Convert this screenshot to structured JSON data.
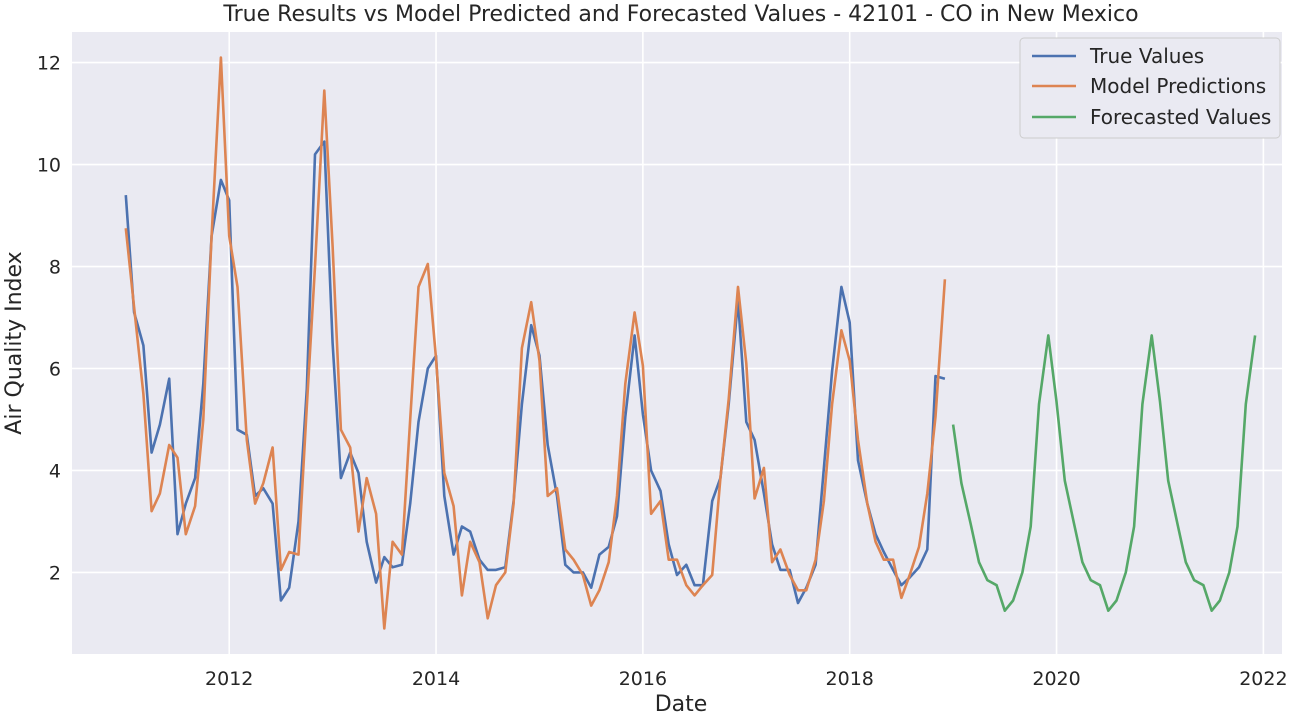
{
  "chart_data": {
    "type": "line",
    "title": "True Results vs Model Predicted and Forecasted Values - 42101 - CO in New Mexico",
    "xlabel": "Date",
    "ylabel": "Air Quality Index",
    "xlim": [
      2010.48,
      2022.18
    ],
    "ylim": [
      0.4,
      12.6
    ],
    "x_ticks": [
      2012,
      2014,
      2016,
      2018,
      2020,
      2022
    ],
    "y_ticks": [
      2,
      4,
      6,
      8,
      10,
      12
    ],
    "grid": true,
    "legend_position": "top-right",
    "series": [
      {
        "name": "True Values",
        "color": "#4c72b0",
        "x": [
          2011.0,
          2011.08,
          2011.17,
          2011.25,
          2011.33,
          2011.42,
          2011.5,
          2011.58,
          2011.67,
          2011.75,
          2011.83,
          2011.92,
          2012.0,
          2012.08,
          2012.17,
          2012.25,
          2012.33,
          2012.42,
          2012.5,
          2012.58,
          2012.67,
          2012.75,
          2012.83,
          2012.92,
          2013.0,
          2013.08,
          2013.17,
          2013.25,
          2013.33,
          2013.42,
          2013.5,
          2013.58,
          2013.67,
          2013.75,
          2013.83,
          2013.92,
          2014.0,
          2014.08,
          2014.17,
          2014.25,
          2014.33,
          2014.42,
          2014.5,
          2014.58,
          2014.67,
          2014.75,
          2014.83,
          2014.92,
          2015.0,
          2015.08,
          2015.17,
          2015.25,
          2015.33,
          2015.42,
          2015.5,
          2015.58,
          2015.67,
          2015.75,
          2015.83,
          2015.92,
          2016.0,
          2016.08,
          2016.17,
          2016.25,
          2016.33,
          2016.42,
          2016.5,
          2016.58,
          2016.67,
          2016.75,
          2016.83,
          2016.92,
          2017.0,
          2017.08,
          2017.17,
          2017.25,
          2017.33,
          2017.42,
          2017.5,
          2017.58,
          2017.67,
          2017.75,
          2017.83,
          2017.92,
          2018.0,
          2018.08,
          2018.17,
          2018.25,
          2018.33,
          2018.42,
          2018.5,
          2018.58,
          2018.67,
          2018.75,
          2018.83,
          2018.92
        ],
        "values": [
          9.4,
          7.1,
          6.45,
          4.35,
          4.9,
          5.8,
          2.75,
          3.35,
          3.85,
          5.7,
          8.6,
          9.7,
          9.3,
          4.8,
          4.7,
          3.5,
          3.65,
          3.35,
          1.45,
          1.7,
          3.0,
          5.6,
          10.2,
          10.45,
          6.5,
          3.85,
          4.35,
          3.95,
          2.6,
          1.8,
          2.3,
          2.1,
          2.15,
          3.35,
          4.95,
          6.0,
          6.25,
          3.5,
          2.35,
          2.9,
          2.8,
          2.25,
          2.05,
          2.05,
          2.1,
          3.4,
          5.3,
          6.85,
          6.25,
          4.5,
          3.5,
          2.15,
          2.0,
          2.0,
          1.7,
          2.35,
          2.5,
          3.1,
          5.05,
          6.65,
          5.1,
          4.0,
          3.6,
          2.55,
          1.95,
          2.15,
          1.75,
          1.75,
          3.4,
          3.85,
          5.3,
          7.35,
          4.95,
          4.6,
          3.55,
          2.55,
          2.05,
          2.05,
          1.4,
          1.7,
          2.15,
          4.05,
          5.95,
          7.6,
          6.9,
          4.2,
          3.35,
          2.75,
          2.4,
          2.05,
          1.75,
          1.9,
          2.1,
          2.45,
          5.85,
          5.8
        ]
      },
      {
        "name": "Model Predictions",
        "color": "#dd8452",
        "x": [
          2011.0,
          2011.08,
          2011.17,
          2011.25,
          2011.33,
          2011.42,
          2011.5,
          2011.58,
          2011.67,
          2011.75,
          2011.83,
          2011.92,
          2012.0,
          2012.08,
          2012.17,
          2012.25,
          2012.33,
          2012.42,
          2012.5,
          2012.58,
          2012.67,
          2012.75,
          2012.83,
          2012.92,
          2013.0,
          2013.08,
          2013.17,
          2013.25,
          2013.33,
          2013.42,
          2013.5,
          2013.58,
          2013.67,
          2013.75,
          2013.83,
          2013.92,
          2014.0,
          2014.08,
          2014.17,
          2014.25,
          2014.33,
          2014.42,
          2014.5,
          2014.58,
          2014.67,
          2014.75,
          2014.83,
          2014.92,
          2015.0,
          2015.08,
          2015.17,
          2015.25,
          2015.33,
          2015.42,
          2015.5,
          2015.58,
          2015.67,
          2015.75,
          2015.83,
          2015.92,
          2016.0,
          2016.08,
          2016.17,
          2016.25,
          2016.33,
          2016.42,
          2016.5,
          2016.58,
          2016.67,
          2016.75,
          2016.83,
          2016.92,
          2017.0,
          2017.08,
          2017.17,
          2017.25,
          2017.33,
          2017.42,
          2017.5,
          2017.58,
          2017.67,
          2017.75,
          2017.83,
          2017.92,
          2018.0,
          2018.08,
          2018.17,
          2018.25,
          2018.33,
          2018.42,
          2018.5,
          2018.58,
          2018.67,
          2018.75,
          2018.83,
          2018.92
        ],
        "values": [
          8.75,
          7.2,
          5.5,
          3.2,
          3.55,
          4.5,
          4.25,
          2.75,
          3.3,
          5.0,
          8.6,
          12.1,
          8.6,
          7.6,
          4.6,
          3.35,
          3.75,
          4.45,
          2.05,
          2.4,
          2.35,
          5.25,
          8.0,
          11.45,
          8.4,
          4.8,
          4.45,
          2.8,
          3.85,
          3.15,
          0.9,
          2.6,
          2.35,
          5.0,
          7.6,
          8.05,
          6.2,
          3.95,
          3.3,
          1.55,
          2.6,
          2.2,
          1.1,
          1.75,
          2.0,
          3.35,
          6.4,
          7.3,
          6.15,
          3.5,
          3.65,
          2.45,
          2.25,
          1.95,
          1.35,
          1.65,
          2.2,
          3.5,
          5.7,
          7.1,
          6.05,
          3.15,
          3.4,
          2.25,
          2.25,
          1.75,
          1.55,
          1.75,
          1.95,
          3.85,
          5.4,
          7.6,
          6.1,
          3.45,
          4.05,
          2.2,
          2.45,
          1.95,
          1.65,
          1.65,
          2.25,
          3.4,
          5.3,
          6.75,
          6.15,
          4.6,
          3.35,
          2.6,
          2.25,
          2.25,
          1.5,
          1.95,
          2.5,
          3.55,
          5.05,
          7.75
        ]
      },
      {
        "name": "Forecasted Values",
        "color": "#55a868",
        "x": [
          2019.0,
          2019.08,
          2019.17,
          2019.25,
          2019.33,
          2019.42,
          2019.5,
          2019.58,
          2019.67,
          2019.75,
          2019.83,
          2019.92,
          2020.0,
          2020.08,
          2020.17,
          2020.25,
          2020.33,
          2020.42,
          2020.5,
          2020.58,
          2020.67,
          2020.75,
          2020.83,
          2020.92,
          2021.0,
          2021.08,
          2021.17,
          2021.25,
          2021.33,
          2021.42,
          2021.5,
          2021.58,
          2021.67,
          2021.75,
          2021.83,
          2021.92
        ],
        "values": [
          4.9,
          3.75,
          2.95,
          2.2,
          1.85,
          1.75,
          1.25,
          1.45,
          2.0,
          2.9,
          5.3,
          6.65,
          5.35,
          3.8,
          2.95,
          2.2,
          1.85,
          1.75,
          1.25,
          1.45,
          2.0,
          2.9,
          5.3,
          6.65,
          5.35,
          3.8,
          2.95,
          2.2,
          1.85,
          1.75,
          1.25,
          1.45,
          2.0,
          2.9,
          5.3,
          6.65
        ]
      }
    ]
  }
}
